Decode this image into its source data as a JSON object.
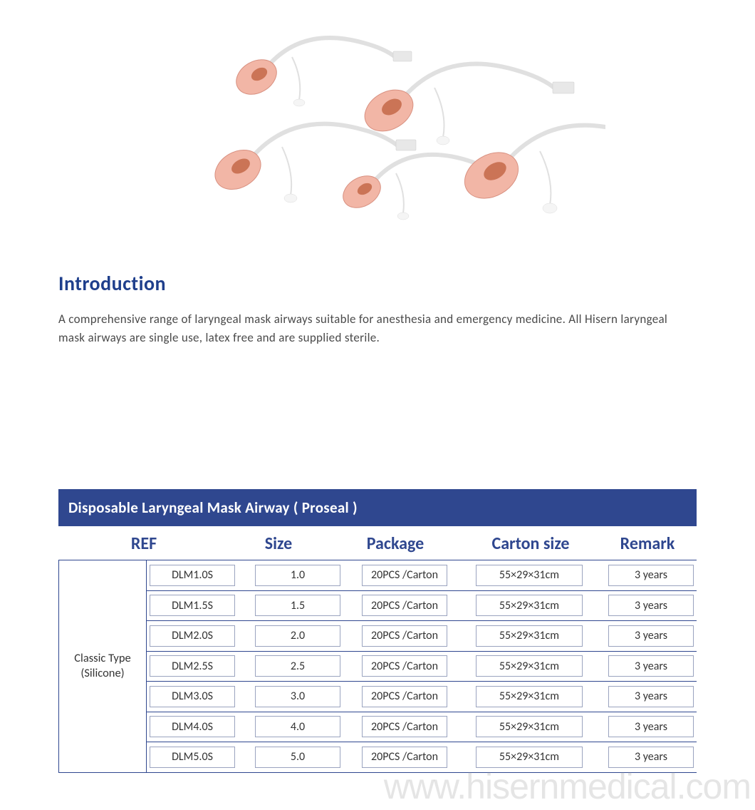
{
  "intro": {
    "heading": "Introduction",
    "text": "A comprehensive range of laryngeal mask airways suitable for anesthesia and emergency medicine. All Hisern laryngeal mask airways are single use, latex free and are supplied sterile."
  },
  "table": {
    "title": "Disposable Laryngeal Mask Airway ( Proseal )",
    "headers": {
      "ref": "REF",
      "size": "Size",
      "package": "Package",
      "carton": "Carton size",
      "remark": "Remark"
    },
    "type_label": "Classic Type\n(Silicone)",
    "rows": [
      {
        "ref": "DLM1.0S",
        "size": "1.0",
        "package": "20PCS /Carton",
        "carton": "55×29×31cm",
        "remark": "3 years"
      },
      {
        "ref": "DLM1.5S",
        "size": "1.5",
        "package": "20PCS /Carton",
        "carton": "55×29×31cm",
        "remark": "3 years"
      },
      {
        "ref": "DLM2.0S",
        "size": "2.0",
        "package": "20PCS /Carton",
        "carton": "55×29×31cm",
        "remark": "3 years"
      },
      {
        "ref": "DLM2.5S",
        "size": "2.5",
        "package": "20PCS /Carton",
        "carton": "55×29×31cm",
        "remark": "3 years"
      },
      {
        "ref": "DLM3.0S",
        "size": "3.0",
        "package": "20PCS /Carton",
        "carton": "55×29×31cm",
        "remark": "3 years"
      },
      {
        "ref": "DLM4.0S",
        "size": "4.0",
        "package": "20PCS /Carton",
        "carton": "55×29×31cm",
        "remark": "3 years"
      },
      {
        "ref": "DLM5.0S",
        "size": "5.0",
        "package": "20PCS /Carton",
        "carton": "55×29×31cm",
        "remark": "3 years"
      }
    ]
  },
  "watermark": "www.hisernmedical.com",
  "colors": {
    "heading": "#1f3f8c",
    "table_header_bg": "#2f478f",
    "table_header_text": "#ffffff",
    "border": "#2f478f",
    "cell_border": "#9aa3bf",
    "body_text": "#4a4a4a",
    "cuff": "#f2b6a6",
    "cuff_inner": "#c46848"
  }
}
